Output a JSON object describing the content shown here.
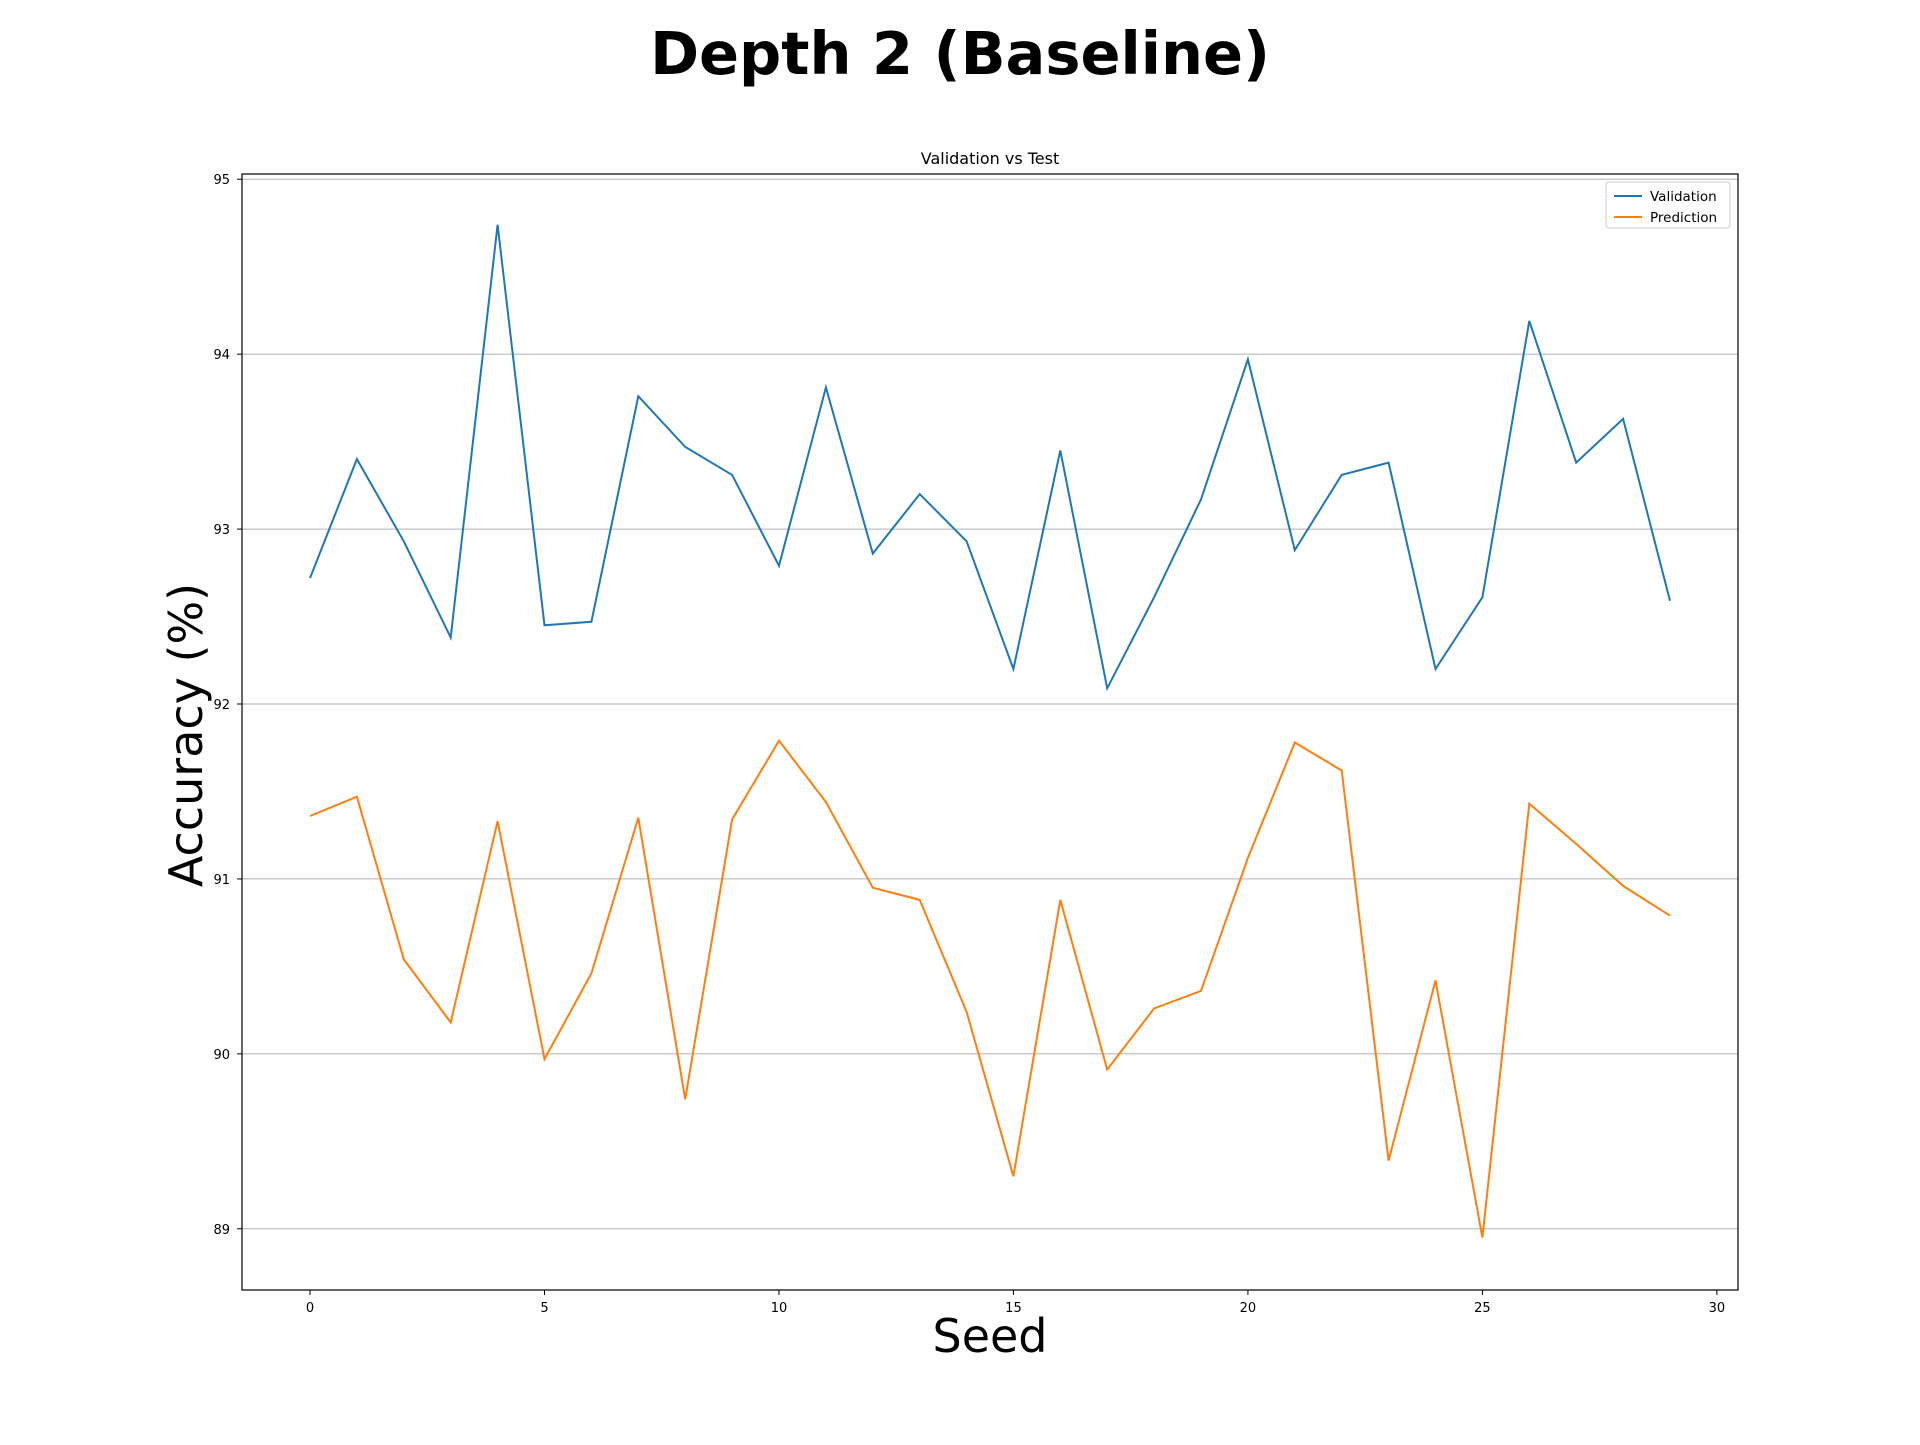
{
  "chart_data": {
    "type": "line",
    "suptitle": "Depth 2 (Baseline)",
    "title": "Validation vs Test",
    "xlabel": "Seed",
    "ylabel": "Accuracy (%)",
    "xlim": [
      -1.45,
      30.45
    ],
    "ylim": [
      88.65,
      95.03
    ],
    "xticks": [
      0,
      5,
      10,
      15,
      20,
      25,
      30
    ],
    "yticks": [
      89,
      90,
      91,
      92,
      93,
      94,
      95
    ],
    "grid": "y",
    "legend": "upper right",
    "x": [
      0,
      1,
      2,
      3,
      4,
      5,
      6,
      7,
      8,
      9,
      10,
      11,
      12,
      13,
      14,
      15,
      16,
      17,
      18,
      19,
      20,
      21,
      22,
      23,
      24,
      25,
      26,
      27,
      28,
      29
    ],
    "series": [
      {
        "name": "Validation",
        "color": "#1f77b4",
        "values": [
          92.72,
          93.4,
          92.93,
          92.38,
          94.74,
          92.45,
          92.47,
          93.76,
          93.47,
          93.31,
          92.79,
          93.81,
          92.86,
          93.2,
          92.93,
          92.2,
          93.45,
          92.09,
          92.61,
          93.17,
          93.97,
          92.88,
          93.31,
          93.38,
          92.2,
          92.61,
          94.19,
          93.38,
          93.63,
          92.59
        ]
      },
      {
        "name": "Prediction",
        "color": "#ff7f0e",
        "values": [
          91.36,
          91.47,
          90.54,
          90.18,
          91.33,
          89.97,
          90.46,
          91.35,
          89.74,
          91.34,
          91.79,
          91.44,
          90.95,
          90.88,
          90.24,
          89.3,
          90.88,
          89.91,
          90.26,
          90.36,
          91.12,
          91.78,
          91.62,
          89.39,
          90.42,
          88.95,
          91.43,
          91.2,
          90.96,
          90.79
        ]
      }
    ]
  }
}
